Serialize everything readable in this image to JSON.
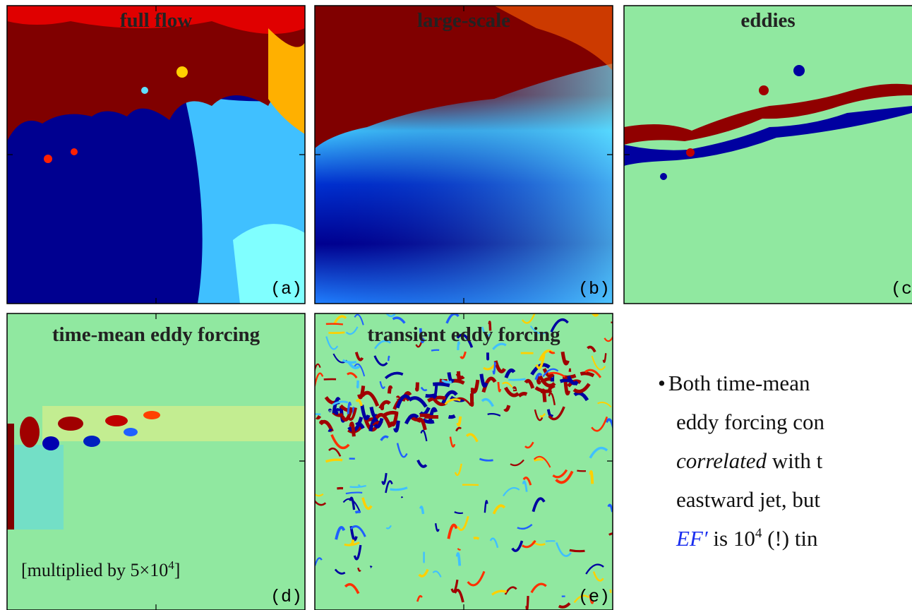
{
  "panels": [
    {
      "title": "full flow",
      "label": "(a)"
    },
    {
      "title": "large-scale",
      "label": "(b)"
    },
    {
      "title": "eddies",
      "label": "(c"
    },
    {
      "title": "time-mean eddy forcing",
      "label": "(d)"
    },
    {
      "title": "transient eddy forcing",
      "label": "(e)"
    }
  ],
  "annotation": {
    "text": "[multiplied by 5×10",
    "exponent": "4",
    "close": "]"
  },
  "bullet": {
    "symbol": "•",
    "lines": [
      "Both time-mean",
      "eddy forcing con",
      "correlated",
      " with t",
      "eastward jet, but"
    ],
    "last": {
      "symbol": "EF′",
      "text1": " is ",
      "base": "10",
      "exponent": "4",
      "text2": " (!) tin"
    }
  }
}
